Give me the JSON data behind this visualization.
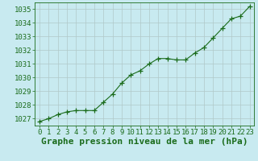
{
  "x": [
    0,
    1,
    2,
    3,
    4,
    5,
    6,
    7,
    8,
    9,
    10,
    11,
    12,
    13,
    14,
    15,
    16,
    17,
    18,
    19,
    20,
    21,
    22,
    23
  ],
  "y": [
    1026.8,
    1027.0,
    1027.3,
    1027.5,
    1027.6,
    1027.6,
    1027.6,
    1028.2,
    1028.8,
    1029.6,
    1030.2,
    1030.5,
    1031.0,
    1031.4,
    1031.4,
    1031.3,
    1031.3,
    1031.8,
    1032.2,
    1032.9,
    1033.6,
    1034.3,
    1034.5,
    1035.2
  ],
  "line_color": "#1a6b1a",
  "marker": "+",
  "marker_size": 4,
  "bg_color": "#c8eaf0",
  "grid_color": "#b0c8c8",
  "xlabel": "Graphe pression niveau de la mer (hPa)",
  "xlabel_color": "#1a6b1a",
  "xlabel_fontsize": 8,
  "tick_color": "#1a6b1a",
  "tick_fontsize": 6.5,
  "ylim": [
    1026.5,
    1035.5
  ],
  "yticks": [
    1027,
    1028,
    1029,
    1030,
    1031,
    1032,
    1033,
    1034,
    1035
  ],
  "xlim": [
    -0.5,
    23.5
  ],
  "xticks": [
    0,
    1,
    2,
    3,
    4,
    5,
    6,
    7,
    8,
    9,
    10,
    11,
    12,
    13,
    14,
    15,
    16,
    17,
    18,
    19,
    20,
    21,
    22,
    23
  ]
}
